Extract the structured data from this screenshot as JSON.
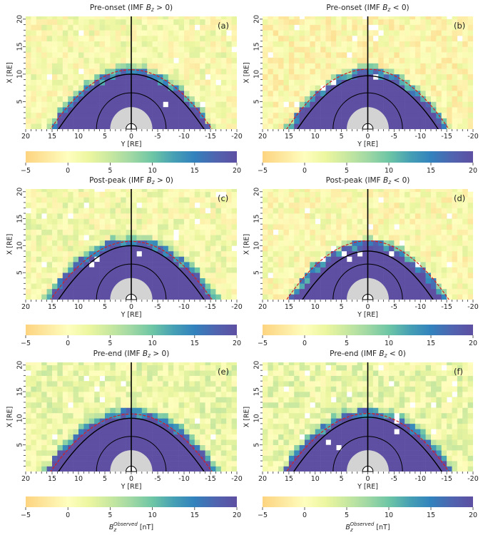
{
  "figure": {
    "colorbar_label_main": "B",
    "colorbar_label_sub": "z",
    "colorbar_label_sup": "Observed",
    "colorbar_label_unit": " [nT]"
  },
  "chart_data": [
    {
      "type": "heatmap",
      "panel": "(a)",
      "title_prefix": "Pre-onset (IMF ",
      "title_var": "B",
      "title_sub": "z",
      "title_suffix": " > 0)",
      "xlabel": "Y [RE]",
      "ylabel": "X [RE]",
      "xlim": [
        20,
        -20
      ],
      "ylim": [
        0,
        20.5
      ],
      "xticks": [
        20,
        15,
        10,
        5,
        0,
        -5,
        -10,
        -15,
        -20
      ],
      "yticks": [
        5,
        10,
        15,
        20
      ],
      "colorbar": {
        "min": -5,
        "max": 20,
        "ticks": [
          -5,
          0,
          5,
          10,
          15,
          20
        ],
        "colormap": "Spectral-like (orange→yellow→green→blue→purple)"
      },
      "solid_boundary_subsolar_x": 10.0,
      "dashed_boundary_subsolar_x": 10.8,
      "inner_circle_radius": 6.6,
      "gray_disk_radius": 4.0,
      "saturated_region_edge_x": 10.5,
      "background_mean_nT": 1.0,
      "seed": 11
    },
    {
      "type": "heatmap",
      "panel": "(b)",
      "title_prefix": "Pre-onset (IMF ",
      "title_var": "B",
      "title_sub": "z",
      "title_suffix": " < 0)",
      "xlabel": "Y [RE]",
      "ylabel": "X [RE]",
      "xlim": [
        20,
        -20
      ],
      "ylim": [
        0,
        20.5
      ],
      "xticks": [
        20,
        15,
        10,
        5,
        0,
        -5,
        -10,
        -15,
        -20
      ],
      "yticks": [
        5,
        10,
        15,
        20
      ],
      "colorbar": {
        "min": -5,
        "max": 20,
        "ticks": [
          -5,
          0,
          5,
          10,
          15,
          20
        ]
      },
      "solid_boundary_subsolar_x": 9.7,
      "dashed_boundary_subsolar_x": 10.9,
      "inner_circle_radius": 6.6,
      "gray_disk_radius": 4.0,
      "saturated_region_edge_x": 10.4,
      "background_mean_nT": 0.0,
      "seed": 23
    },
    {
      "type": "heatmap",
      "panel": "(c)",
      "title_prefix": "Post-peak (IMF ",
      "title_var": "B",
      "title_sub": "z",
      "title_suffix": " > 0)",
      "xlabel": "Y [RE]",
      "ylabel": "X [RE]",
      "xlim": [
        20,
        -20
      ],
      "ylim": [
        0,
        20.5
      ],
      "xticks": [
        20,
        15,
        10,
        5,
        0,
        -5,
        -10,
        -15,
        -20
      ],
      "yticks": [
        5,
        10,
        15,
        20
      ],
      "colorbar": {
        "min": -5,
        "max": 20,
        "ticks": [
          -5,
          0,
          5,
          10,
          15,
          20
        ]
      },
      "solid_boundary_subsolar_x": 10.0,
      "dashed_boundary_subsolar_x": 10.8,
      "inner_circle_radius": 6.6,
      "gray_disk_radius": 4.0,
      "saturated_region_edge_x": 11.0,
      "background_mean_nT": 1.5,
      "seed": 37
    },
    {
      "type": "heatmap",
      "panel": "(d)",
      "title_prefix": "Post-peak (IMF ",
      "title_var": "B",
      "title_sub": "z",
      "title_suffix": " < 0)",
      "xlabel": "Y [RE]",
      "ylabel": "X [RE]",
      "xlim": [
        20,
        -20
      ],
      "ylim": [
        0,
        20.5
      ],
      "xticks": [
        20,
        15,
        10,
        5,
        0,
        -5,
        -10,
        -15,
        -20
      ],
      "yticks": [
        5,
        10,
        15,
        20
      ],
      "colorbar": {
        "min": -5,
        "max": 20,
        "ticks": [
          -5,
          0,
          5,
          10,
          15,
          20
        ]
      },
      "solid_boundary_subsolar_x": 9.0,
      "dashed_boundary_subsolar_x": 10.9,
      "inner_circle_radius": 6.6,
      "gray_disk_radius": 4.0,
      "saturated_region_edge_x": 10.3,
      "background_mean_nT": 0.5,
      "seed": 41
    },
    {
      "type": "heatmap",
      "panel": "(e)",
      "title_prefix": "Pre-end (IMF ",
      "title_var": "B",
      "title_sub": "z",
      "title_suffix": " > 0)",
      "xlabel": "Y [RE]",
      "ylabel": "X [RE]",
      "xlim": [
        20,
        -20
      ],
      "ylim": [
        0,
        20.5
      ],
      "xticks": [
        20,
        15,
        10,
        5,
        0,
        -5,
        -10,
        -15,
        -20
      ],
      "yticks": [
        5,
        10,
        15,
        20
      ],
      "colorbar": {
        "min": -5,
        "max": 20,
        "ticks": [
          -5,
          0,
          5,
          10,
          15,
          20
        ]
      },
      "solid_boundary_subsolar_x": 10.0,
      "dashed_boundary_subsolar_x": 10.8,
      "inner_circle_radius": 6.6,
      "gray_disk_radius": 4.0,
      "saturated_region_edge_x": 11.2,
      "background_mean_nT": 2.5,
      "seed": 53
    },
    {
      "type": "heatmap",
      "panel": "(f)",
      "title_prefix": "Pre-end (IMF ",
      "title_var": "B",
      "title_sub": "z",
      "title_suffix": " < 0)",
      "xlabel": "Y [RE]",
      "ylabel": "X [RE]",
      "xlim": [
        20,
        -20
      ],
      "ylim": [
        0,
        20.5
      ],
      "xticks": [
        20,
        15,
        10,
        5,
        0,
        -5,
        -10,
        -15,
        -20
      ],
      "yticks": [
        5,
        10,
        15,
        20
      ],
      "colorbar": {
        "min": -5,
        "max": 20,
        "ticks": [
          -5,
          0,
          5,
          10,
          15,
          20
        ]
      },
      "solid_boundary_subsolar_x": 10.2,
      "dashed_boundary_subsolar_x": 10.9,
      "inner_circle_radius": 6.6,
      "gray_disk_radius": 4.0,
      "saturated_region_edge_x": 11.2,
      "background_mean_nT": 2.5,
      "seed": 67
    }
  ]
}
